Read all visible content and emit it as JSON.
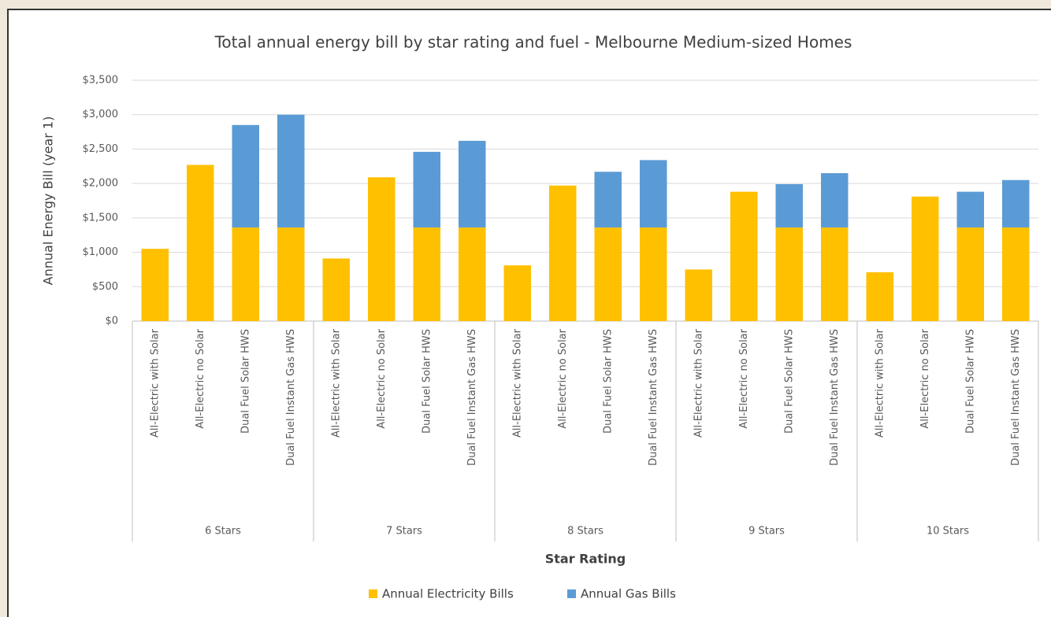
{
  "chart_data": {
    "type": "stacked-bar",
    "title": "Total annual energy bill by star rating and fuel - Melbourne Medium-sized Homes",
    "y_label": "Annual Energy Bill (year 1)",
    "x_label": "Star Rating",
    "groups": [
      "6 Stars",
      "7 Stars",
      "8 Stars",
      "9 Stars",
      "10 Stars"
    ],
    "categories": [
      "All-Electric with Solar",
      "All-Electric no Solar",
      "Dual Fuel Solar HWS",
      "Dual Fuel Instant Gas HWS",
      "All-Electric with Solar",
      "All-Electric no Solar",
      "Dual Fuel Solar HWS",
      "Dual Fuel Instant Gas HWS",
      "All-Electric with Solar",
      "All-Electric no Solar",
      "Dual Fuel Solar HWS",
      "Dual Fuel Instant Gas HWS",
      "All-Electric with Solar",
      "All-Electric no Solar",
      "Dual Fuel Solar HWS",
      "Dual Fuel Instant Gas HWS",
      "All-Electric with Solar",
      "All-Electric no Solar",
      "Dual Fuel Solar HWS",
      "Dual Fuel Instant Gas HWS"
    ],
    "series": [
      {
        "name": "Annual Electricity Bills",
        "color": "#ffc000",
        "values": [
          1050,
          2270,
          1360,
          1360,
          910,
          2090,
          1360,
          1360,
          810,
          1970,
          1360,
          1360,
          750,
          1880,
          1360,
          1360,
          710,
          1810,
          1360,
          1360
        ]
      },
      {
        "name": "Annual Gas Bills",
        "color": "#5b9bd5",
        "values": [
          0,
          0,
          1490,
          1640,
          0,
          0,
          1100,
          1260,
          0,
          0,
          810,
          980,
          0,
          0,
          630,
          790,
          0,
          0,
          520,
          690
        ]
      }
    ],
    "ylim": [
      0,
      3500
    ],
    "yticks": [
      {
        "value": 0,
        "label": "$0"
      },
      {
        "value": 500,
        "label": "$500"
      },
      {
        "value": 1000,
        "label": "$1,000"
      },
      {
        "value": 1500,
        "label": "$1,500"
      },
      {
        "value": 2000,
        "label": "$2,000"
      },
      {
        "value": 2500,
        "label": "$2,500"
      },
      {
        "value": 3000,
        "label": "$3,000"
      },
      {
        "value": 3500,
        "label": "$3,500"
      }
    ],
    "grid": true,
    "legend": "bottom"
  }
}
